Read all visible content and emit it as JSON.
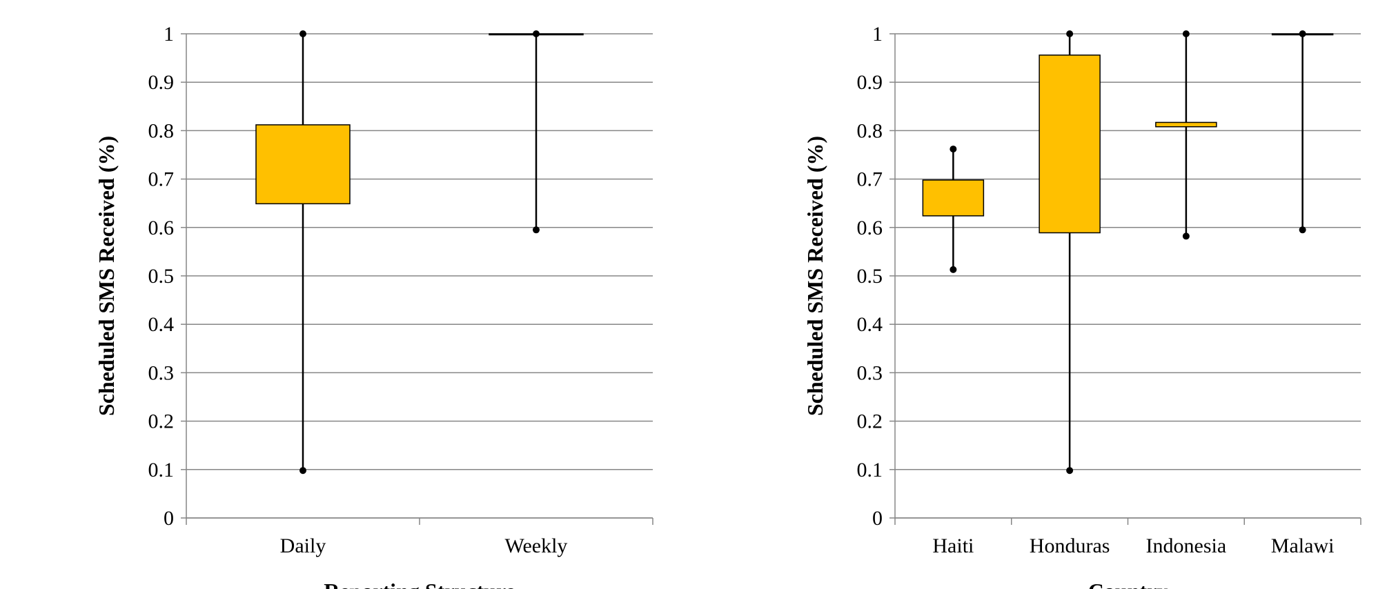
{
  "chart_data": [
    {
      "type": "box",
      "title": "",
      "xlabel": "Reporting Structure",
      "ylabel": "Scheduled SMS Received (%)",
      "ylim": [
        0,
        1
      ],
      "yticks": [
        "0",
        "0.1",
        "0.2",
        "0.3",
        "0.4",
        "0.5",
        "0.6",
        "0.7",
        "0.8",
        "0.9",
        "1"
      ],
      "grid": true,
      "box_color": "#FFC000",
      "categories": [
        "Daily",
        "Weekly"
      ],
      "boxes": [
        {
          "min": 0.098,
          "q1": 0.649,
          "q3": 0.812,
          "max": 1.0
        },
        {
          "min": 0.595,
          "q1": 1.0,
          "q3": 1.0,
          "max": 1.0
        }
      ]
    },
    {
      "type": "box",
      "title": "",
      "xlabel": "Country",
      "ylabel": "Scheduled SMS Received (%)",
      "ylim": [
        0,
        1
      ],
      "yticks": [
        "0",
        "0.1",
        "0.2",
        "0.3",
        "0.4",
        "0.5",
        "0.6",
        "0.7",
        "0.8",
        "0.9",
        "1"
      ],
      "grid": true,
      "box_color": "#FFC000",
      "categories": [
        "Haiti",
        "Honduras",
        "Indonesia",
        "Malawi"
      ],
      "boxes": [
        {
          "min": 0.513,
          "q1": 0.624,
          "q3": 0.698,
          "max": 0.762
        },
        {
          "min": 0.098,
          "q1": 0.589,
          "q3": 0.956,
          "max": 1.0
        },
        {
          "min": 0.582,
          "q1": 0.808,
          "q3": 0.817,
          "max": 1.0
        },
        {
          "min": 0.595,
          "q1": 1.0,
          "q3": 1.0,
          "max": 1.0
        }
      ]
    }
  ]
}
